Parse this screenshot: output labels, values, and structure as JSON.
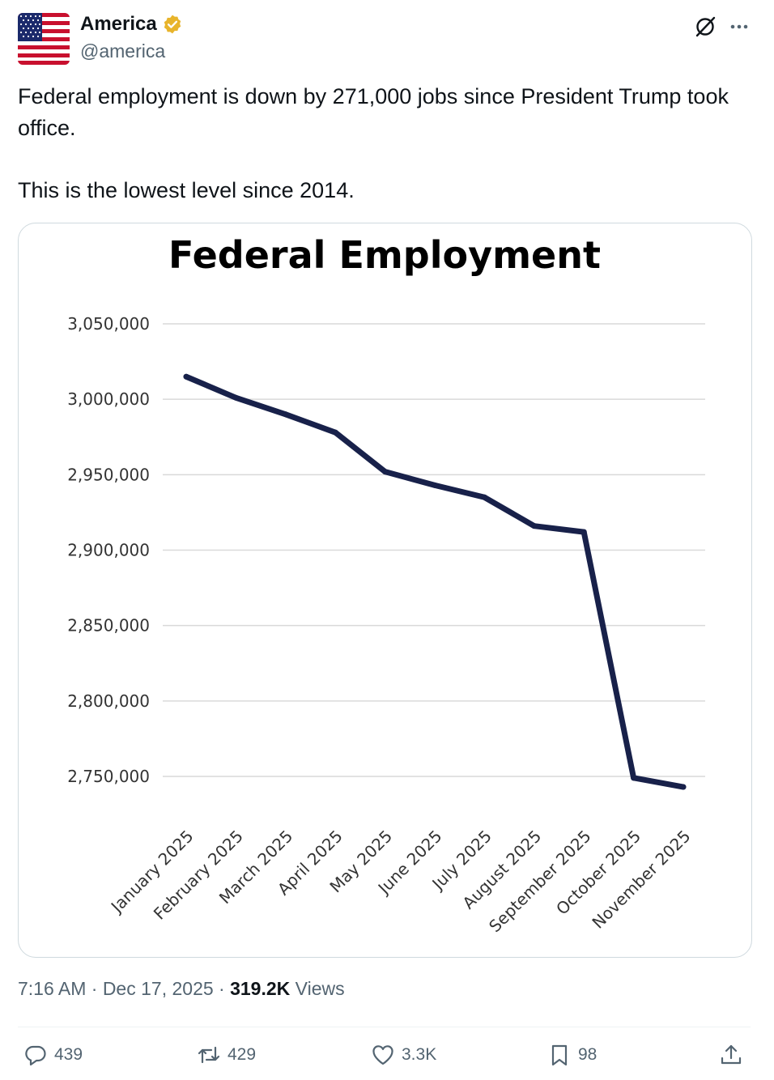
{
  "post": {
    "author_name": "America",
    "author_handle": "@america",
    "text_line1": "Federal employment is down by 271,000 jobs since President Trump took office.",
    "text_line2": "This is the lowest level since 2014.",
    "timestamp": "7:16 AM · Dec 17, 2025 · ",
    "views_count": "319.2K",
    "views_label": " Views"
  },
  "icons": {
    "verified": "verified-badge-icon",
    "grok": "grok-icon",
    "more": "more-icon",
    "reply": "reply-icon",
    "repost": "repost-icon",
    "like": "like-icon",
    "bookmark": "bookmark-icon",
    "share": "share-icon"
  },
  "actions": {
    "replies": "439",
    "reposts": "429",
    "likes": "3.3K",
    "bookmarks": "98"
  },
  "colors": {
    "line": "#18214a",
    "grid": "#d9d9d9",
    "badge": "#e8b42b",
    "muted": "#536471"
  },
  "chart_data": {
    "type": "line",
    "title": "Federal Employment",
    "xlabel": "",
    "ylabel": "",
    "categories": [
      "January 2025",
      "February 2025",
      "March 2025",
      "April 2025",
      "May 2025",
      "June 2025",
      "July 2025",
      "August 2025",
      "September 2025",
      "October 2025",
      "November 2025"
    ],
    "series": [
      {
        "name": "Federal Employment",
        "values": [
          3015000,
          3001000,
          2990000,
          2978000,
          2952000,
          2943000,
          2935000,
          2916000,
          2912000,
          2749000,
          2743000
        ]
      }
    ],
    "yticks": [
      3050000,
      3000000,
      2950000,
      2900000,
      2850000,
      2800000,
      2750000
    ],
    "ytick_labels": [
      "3,050,000",
      "3,000,000",
      "2,950,000",
      "2,900,000",
      "2,850,000",
      "2,800,000",
      "2,750,000"
    ],
    "ylim": [
      2750000,
      3050000
    ],
    "grid": true,
    "legend": "none"
  }
}
